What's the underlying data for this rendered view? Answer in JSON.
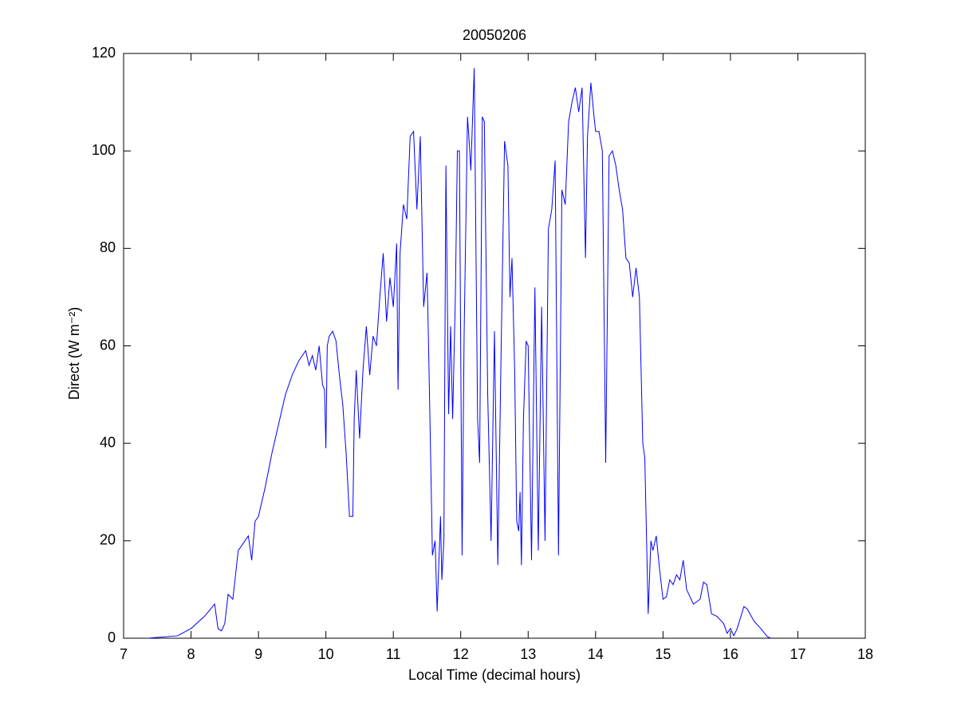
{
  "chart_data": {
    "type": "line",
    "title": "20050206",
    "xlabel": "Local Time (decimal hours)",
    "ylabel": "Direct (W m⁻²)",
    "xlim": [
      7,
      18
    ],
    "xticks": [
      7,
      8,
      9,
      10,
      11,
      12,
      13,
      14,
      15,
      16,
      17,
      18
    ],
    "ylim": [
      0,
      120
    ],
    "yticks": [
      0,
      20,
      40,
      60,
      80,
      100,
      120
    ],
    "grid": false,
    "series": [
      {
        "color": "#0000ff",
        "x": [
          7.35,
          7.8,
          8.0,
          8.2,
          8.35,
          8.4,
          8.45,
          8.5,
          8.55,
          8.62,
          8.7,
          8.8,
          8.85,
          8.9,
          8.95,
          9.0,
          9.1,
          9.2,
          9.3,
          9.4,
          9.5,
          9.6,
          9.7,
          9.75,
          9.8,
          9.85,
          9.9,
          9.95,
          9.98,
          10.0,
          10.02,
          10.05,
          10.1,
          10.15,
          10.2,
          10.25,
          10.3,
          10.35,
          10.4,
          10.42,
          10.45,
          10.5,
          10.55,
          10.6,
          10.65,
          10.7,
          10.75,
          10.8,
          10.85,
          10.9,
          10.95,
          11.0,
          11.05,
          11.07,
          11.1,
          11.15,
          11.2,
          11.25,
          11.3,
          11.35,
          11.4,
          11.45,
          11.5,
          11.52,
          11.55,
          11.58,
          11.62,
          11.65,
          11.7,
          11.72,
          11.75,
          11.78,
          11.82,
          11.85,
          11.88,
          11.92,
          11.95,
          11.98,
          12.02,
          12.05,
          12.1,
          12.12,
          12.15,
          12.2,
          12.25,
          12.28,
          12.32,
          12.35,
          12.4,
          12.45,
          12.5,
          12.55,
          12.6,
          12.65,
          12.7,
          12.73,
          12.76,
          12.8,
          12.83,
          12.86,
          12.88,
          12.9,
          12.93,
          12.97,
          13.0,
          13.05,
          13.1,
          13.15,
          13.2,
          13.25,
          13.3,
          13.35,
          13.4,
          13.45,
          13.5,
          13.55,
          13.6,
          13.65,
          13.7,
          13.75,
          13.8,
          13.85,
          13.88,
          13.93,
          13.97,
          14.0,
          14.05,
          14.1,
          14.15,
          14.2,
          14.25,
          14.3,
          14.35,
          14.4,
          14.45,
          14.5,
          14.55,
          14.6,
          14.65,
          14.7,
          14.73,
          14.78,
          14.82,
          14.85,
          14.9,
          14.95,
          15.0,
          15.05,
          15.1,
          15.15,
          15.2,
          15.25,
          15.3,
          15.35,
          15.45,
          15.55,
          15.6,
          15.65,
          15.72,
          15.8,
          15.9,
          15.95,
          16.0,
          16.05,
          16.1,
          16.2,
          16.25,
          16.35,
          16.45,
          16.55,
          16.6
        ],
        "values": [
          0,
          0.5,
          2,
          4.5,
          7,
          2,
          1.5,
          3,
          9,
          8,
          18,
          20,
          21,
          16,
          24,
          25,
          31,
          38,
          44,
          50,
          54,
          57,
          59,
          56,
          58,
          55,
          60,
          52,
          51,
          39,
          60,
          62,
          63,
          61,
          54,
          48,
          38,
          25,
          25,
          45,
          55,
          41,
          55,
          64,
          54,
          62,
          60,
          70,
          79,
          65,
          74,
          68,
          81,
          51,
          79,
          89,
          86,
          103,
          104,
          88,
          103,
          68,
          75,
          62,
          40,
          17,
          20,
          5.5,
          25,
          12,
          20,
          97,
          46,
          64,
          45,
          70,
          100,
          100,
          17,
          62,
          107,
          103,
          96,
          117,
          45,
          36,
          107,
          106,
          50,
          20,
          63,
          15,
          60,
          102,
          97,
          70,
          78,
          55,
          24,
          22,
          30,
          15,
          45,
          61,
          60,
          16,
          72,
          18,
          68,
          20,
          84,
          88,
          98,
          17,
          92,
          89,
          106,
          110,
          113,
          108,
          113,
          78,
          103,
          114,
          108,
          104,
          104,
          100,
          36,
          99,
          100,
          97,
          92,
          88,
          78,
          77,
          70,
          76,
          70,
          40,
          37,
          5,
          20,
          18,
          21,
          14,
          8,
          8.5,
          12,
          11,
          13,
          12,
          16,
          10,
          7,
          8,
          11.5,
          11,
          5,
          4.5,
          3,
          1,
          2,
          0.5,
          2,
          6.5,
          6,
          3.5,
          2,
          0.3,
          0
        ]
      }
    ]
  }
}
